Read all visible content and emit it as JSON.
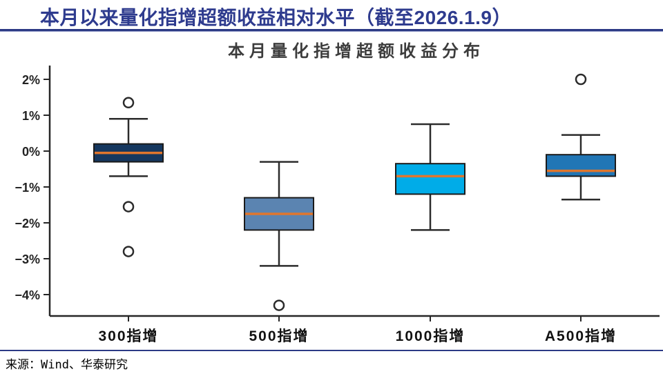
{
  "header": {
    "title": "本月以来量化指增超额收益相对水平（截至2026.1.9）"
  },
  "footer": {
    "source": "来源：Wind、华泰研究"
  },
  "chart_data": {
    "type": "boxplot",
    "title": "本月量化指增超额收益分布",
    "unit": "%",
    "grid": false,
    "legend": "none",
    "ylim": [
      -4.6,
      2.4
    ],
    "yticks": [
      {
        "label": "2%",
        "value": 2
      },
      {
        "label": "1%",
        "value": 1
      },
      {
        "label": "0%",
        "value": 0
      },
      {
        "label": "−1%",
        "value": -1
      },
      {
        "label": "−2%",
        "value": -2
      },
      {
        "label": "−3%",
        "value": -3
      },
      {
        "label": "−4%",
        "value": -4
      }
    ],
    "categories": [
      "300指增",
      "500指增",
      "1000指增",
      "A500指增"
    ],
    "series": [
      {
        "name": "300指增",
        "whisker_low": -0.7,
        "q1": -0.3,
        "median": -0.05,
        "q3": 0.2,
        "whisker_high": 0.9,
        "outliers": [
          1.35,
          -1.55,
          -2.8
        ],
        "box_color": "#15375f"
      },
      {
        "name": "500指增",
        "whisker_low": -3.2,
        "q1": -2.2,
        "median": -1.75,
        "q3": -1.3,
        "whisker_high": -0.3,
        "outliers": [
          -4.3
        ],
        "box_color": "#5b84b1"
      },
      {
        "name": "1000指增",
        "whisker_low": -2.2,
        "q1": -1.2,
        "median": -0.7,
        "q3": -0.35,
        "whisker_high": 0.75,
        "outliers": [],
        "box_color": "#00ace8"
      },
      {
        "name": "A500指增",
        "whisker_low": -1.35,
        "q1": -0.7,
        "median": -0.55,
        "q3": -0.1,
        "whisker_high": 0.45,
        "outliers": [
          2.0
        ],
        "box_color": "#2176b5"
      }
    ],
    "colors": {
      "median_line": "#e0762d",
      "box_stroke": "#1a1a1a",
      "whisker": "#2b2b2b",
      "axis": "#262626",
      "outlier_stroke": "#2b2b2b",
      "outlier_fill": "#ffffff"
    }
  }
}
